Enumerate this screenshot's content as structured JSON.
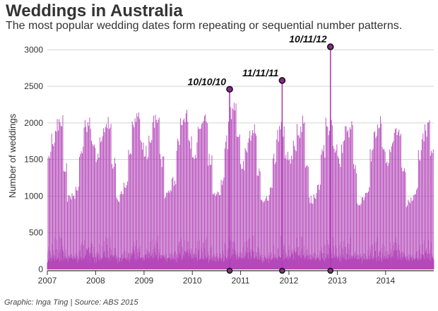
{
  "header": {
    "title": "Weddings in Australia",
    "subtitle": "The most popular wedding dates form repeating or sequential number patterns."
  },
  "footer": {
    "source": "Graphic: Inga Ting | Source: ABS 2015"
  },
  "colors": {
    "bar": "#b03db5",
    "marker_fill": "#8a2a8c",
    "grid": "#d3d3d3",
    "axis": "#333333"
  },
  "chart_data": {
    "type": "bar",
    "title": "Weddings in Australia",
    "subtitle": "The most popular wedding dates form repeating or sequential number patterns.",
    "xlabel": "",
    "ylabel": "Number of weddings",
    "x_range": [
      "2007-01-01",
      "2014-12-31"
    ],
    "ylim": [
      0,
      3100
    ],
    "yticks": [
      0,
      500,
      1000,
      1500,
      2000,
      2500,
      3000
    ],
    "xticks": [
      {
        "label": "2007",
        "date": "2007-01-01"
      },
      {
        "label": "2008",
        "date": "2008-01-01"
      },
      {
        "label": "2009",
        "date": "2009-01-01"
      },
      {
        "label": "2010",
        "date": "2010-01-01"
      },
      {
        "label": "2011",
        "date": "2011-01-01"
      },
      {
        "label": "2012",
        "date": "2012-01-01"
      },
      {
        "label": "2013",
        "date": "2013-01-01"
      },
      {
        "label": "2014",
        "date": "2014-01-01"
      }
    ],
    "grid": true,
    "series_description": "daily wedding counts; Saturdays peak near 2000–2200 in spring/autumn months, weekdays near 50–300",
    "annual_saturday_peaks": [
      {
        "year": 2007,
        "peak": 2180,
        "trough": 1300
      },
      {
        "year": 2008,
        "peak": 2200,
        "trough": 1450
      },
      {
        "year": 2009,
        "peak": 2280,
        "trough": 1400
      },
      {
        "year": 2010,
        "peak": 2300,
        "trough": 1350
      },
      {
        "year": 2011,
        "peak": 2050,
        "trough": 1300
      },
      {
        "year": 2012,
        "peak": 2150,
        "trough": 1250
      },
      {
        "year": 2013,
        "peak": 2100,
        "trough": 1200
      },
      {
        "year": 2014,
        "peak": 2050,
        "trough": 1150
      }
    ],
    "annotations": [
      {
        "label": "10/10/10",
        "date": "2010-10-10",
        "value": 2460
      },
      {
        "label": "11/11/11",
        "date": "2011-11-11",
        "value": 2580
      },
      {
        "label": "10/11/12",
        "date": "2012-11-10",
        "value": 3040
      }
    ]
  }
}
